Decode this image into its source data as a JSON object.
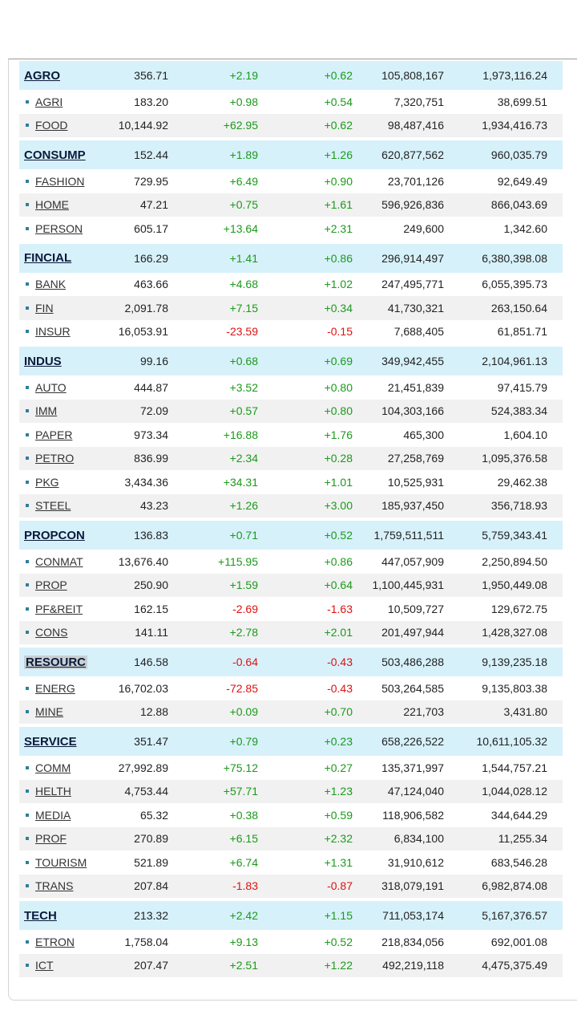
{
  "colors": {
    "positive": "#1a9a1a",
    "negative": "#e01010",
    "group_bg": "#d7f1fb",
    "shade_bg": "#f1f1f1"
  },
  "rows": [
    {
      "kind": "group",
      "name": "AGRO",
      "index": "356.71",
      "change": "+2.19",
      "pct": "+0.62",
      "volume": "105,808,167",
      "value": "1,973,116.24"
    },
    {
      "kind": "sub",
      "name": "AGRI",
      "index": "183.20",
      "change": "+0.98",
      "pct": "+0.54",
      "volume": "7,320,751",
      "value": "38,699.51"
    },
    {
      "kind": "sub",
      "name": "FOOD",
      "index": "10,144.92",
      "change": "+62.95",
      "pct": "+0.62",
      "volume": "98,487,416",
      "value": "1,934,416.73"
    },
    {
      "kind": "group",
      "name": "CONSUMP",
      "index": "152.44",
      "change": "+1.89",
      "pct": "+1.26",
      "volume": "620,877,562",
      "value": "960,035.79"
    },
    {
      "kind": "sub",
      "name": "FASHION",
      "index": "729.95",
      "change": "+6.49",
      "pct": "+0.90",
      "volume": "23,701,126",
      "value": "92,649.49"
    },
    {
      "kind": "sub",
      "name": "HOME",
      "index": "47.21",
      "change": "+0.75",
      "pct": "+1.61",
      "volume": "596,926,836",
      "value": "866,043.69"
    },
    {
      "kind": "sub",
      "name": "PERSON",
      "index": "605.17",
      "change": "+13.64",
      "pct": "+2.31",
      "volume": "249,600",
      "value": "1,342.60"
    },
    {
      "kind": "group",
      "name": "FINCIAL",
      "index": "166.29",
      "change": "+1.41",
      "pct": "+0.86",
      "volume": "296,914,497",
      "value": "6,380,398.08"
    },
    {
      "kind": "sub",
      "name": "BANK",
      "index": "463.66",
      "change": "+4.68",
      "pct": "+1.02",
      "volume": "247,495,771",
      "value": "6,055,395.73"
    },
    {
      "kind": "sub",
      "name": "FIN",
      "index": "2,091.78",
      "change": "+7.15",
      "pct": "+0.34",
      "volume": "41,730,321",
      "value": "263,150.64"
    },
    {
      "kind": "sub",
      "name": "INSUR",
      "index": "16,053.91",
      "change": "-23.59",
      "pct": "-0.15",
      "volume": "7,688,405",
      "value": "61,851.71"
    },
    {
      "kind": "group",
      "name": "INDUS",
      "index": "99.16",
      "change": "+0.68",
      "pct": "+0.69",
      "volume": "349,942,455",
      "value": "2,104,961.13"
    },
    {
      "kind": "sub",
      "name": "AUTO",
      "index": "444.87",
      "change": "+3.52",
      "pct": "+0.80",
      "volume": "21,451,839",
      "value": "97,415.79"
    },
    {
      "kind": "sub",
      "name": "IMM",
      "index": "72.09",
      "change": "+0.57",
      "pct": "+0.80",
      "volume": "104,303,166",
      "value": "524,383.34"
    },
    {
      "kind": "sub",
      "name": "PAPER",
      "index": "973.34",
      "change": "+16.88",
      "pct": "+1.76",
      "volume": "465,300",
      "value": "1,604.10"
    },
    {
      "kind": "sub",
      "name": "PETRO",
      "index": "836.99",
      "change": "+2.34",
      "pct": "+0.28",
      "volume": "27,258,769",
      "value": "1,095,376.58"
    },
    {
      "kind": "sub",
      "name": "PKG",
      "index": "3,434.36",
      "change": "+34.31",
      "pct": "+1.01",
      "volume": "10,525,931",
      "value": "29,462.38"
    },
    {
      "kind": "sub",
      "name": "STEEL",
      "index": "43.23",
      "change": "+1.26",
      "pct": "+3.00",
      "volume": "185,937,450",
      "value": "356,718.93"
    },
    {
      "kind": "group",
      "name": "PROPCON",
      "index": "136.83",
      "change": "+0.71",
      "pct": "+0.52",
      "volume": "1,759,511,511",
      "value": "5,759,343.41"
    },
    {
      "kind": "sub",
      "name": "CONMAT",
      "index": "13,676.40",
      "change": "+115.95",
      "pct": "+0.86",
      "volume": "447,057,909",
      "value": "2,250,894.50"
    },
    {
      "kind": "sub",
      "name": "PROP",
      "index": "250.90",
      "change": "+1.59",
      "pct": "+0.64",
      "volume": "1,100,445,931",
      "value": "1,950,449.08"
    },
    {
      "kind": "sub",
      "name": "PF&REIT",
      "index": "162.15",
      "change": "-2.69",
      "pct": "-1.63",
      "volume": "10,509,727",
      "value": "129,672.75"
    },
    {
      "kind": "sub",
      "name": "CONS",
      "index": "141.11",
      "change": "+2.78",
      "pct": "+2.01",
      "volume": "201,497,944",
      "value": "1,428,327.08"
    },
    {
      "kind": "group",
      "name": "RESOURC",
      "index": "146.58",
      "change": "-0.64",
      "pct": "-0.43",
      "volume": "503,486,288",
      "value": "9,139,235.18",
      "boxed": true
    },
    {
      "kind": "sub",
      "name": "ENERG",
      "index": "16,702.03",
      "change": "-72.85",
      "pct": "-0.43",
      "volume": "503,264,585",
      "value": "9,135,803.38"
    },
    {
      "kind": "sub",
      "name": "MINE",
      "index": "12.88",
      "change": "+0.09",
      "pct": "+0.70",
      "volume": "221,703",
      "value": "3,431.80"
    },
    {
      "kind": "group",
      "name": "SERVICE",
      "index": "351.47",
      "change": "+0.79",
      "pct": "+0.23",
      "volume": "658,226,522",
      "value": "10,611,105.32"
    },
    {
      "kind": "sub",
      "name": "COMM",
      "index": "27,992.89",
      "change": "+75.12",
      "pct": "+0.27",
      "volume": "135,371,997",
      "value": "1,544,757.21"
    },
    {
      "kind": "sub",
      "name": "HELTH",
      "index": "4,753.44",
      "change": "+57.71",
      "pct": "+1.23",
      "volume": "47,124,040",
      "value": "1,044,028.12"
    },
    {
      "kind": "sub",
      "name": "MEDIA",
      "index": "65.32",
      "change": "+0.38",
      "pct": "+0.59",
      "volume": "118,906,582",
      "value": "344,644.29"
    },
    {
      "kind": "sub",
      "name": "PROF",
      "index": "270.89",
      "change": "+6.15",
      "pct": "+2.32",
      "volume": "6,834,100",
      "value": "11,255.34"
    },
    {
      "kind": "sub",
      "name": "TOURISM",
      "index": "521.89",
      "change": "+6.74",
      "pct": "+1.31",
      "volume": "31,910,612",
      "value": "683,546.28"
    },
    {
      "kind": "sub",
      "name": "TRANS",
      "index": "207.84",
      "change": "-1.83",
      "pct": "-0.87",
      "volume": "318,079,191",
      "value": "6,982,874.08"
    },
    {
      "kind": "group",
      "name": "TECH",
      "index": "213.32",
      "change": "+2.42",
      "pct": "+1.15",
      "volume": "711,053,174",
      "value": "5,167,376.57"
    },
    {
      "kind": "sub",
      "name": "ETRON",
      "index": "1,758.04",
      "change": "+9.13",
      "pct": "+0.52",
      "volume": "218,834,056",
      "value": "692,001.08"
    },
    {
      "kind": "sub",
      "name": "ICT",
      "index": "207.47",
      "change": "+2.51",
      "pct": "+1.22",
      "volume": "492,219,118",
      "value": "4,475,375.49"
    }
  ]
}
